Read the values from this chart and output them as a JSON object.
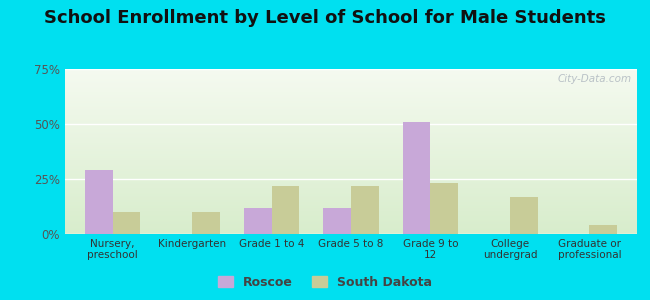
{
  "title": "School Enrollment by Level of School for Male Students",
  "categories": [
    "Nursery,\npreschool",
    "Kindergarten",
    "Grade 1 to 4",
    "Grade 5 to 8",
    "Grade 9 to\n12",
    "College\nundergrad",
    "Graduate or\nprofessional"
  ],
  "roscoe": [
    29,
    0,
    12,
    12,
    51,
    0,
    0
  ],
  "south_dakota": [
    10,
    10,
    22,
    22,
    23,
    17,
    4
  ],
  "roscoe_color": "#c8a8d8",
  "sd_color": "#c8cc98",
  "bar_width": 0.35,
  "ylim": [
    0,
    75
  ],
  "yticks": [
    0,
    25,
    50,
    75
  ],
  "ytick_labels": [
    "0%",
    "25%",
    "50%",
    "75%"
  ],
  "background_outer": "#00e0f0",
  "title_fontsize": 13,
  "legend_labels": [
    "Roscoe",
    "South Dakota"
  ],
  "watermark": "City-Data.com"
}
